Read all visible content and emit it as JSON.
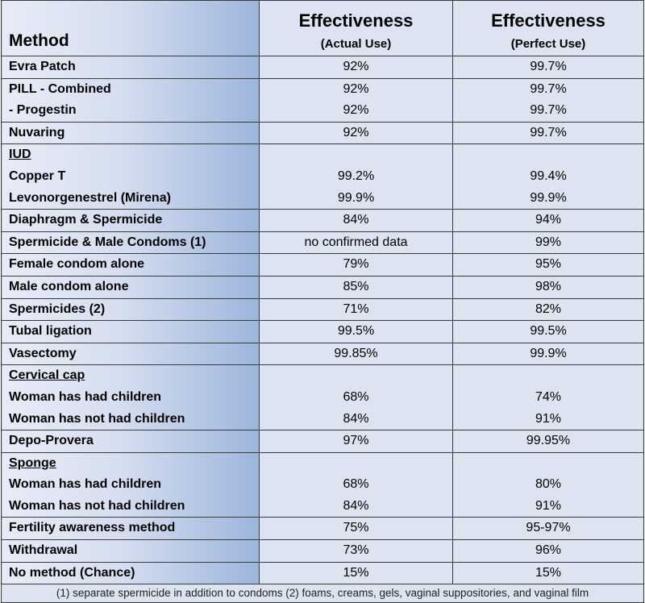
{
  "header": {
    "method": "Method",
    "col_actual_main": "Effectiveness",
    "col_actual_sub": "(Actual Use)",
    "col_perfect_main": "Effectiveness",
    "col_perfect_sub": "(Perfect Use)"
  },
  "rows": [
    {
      "lines": [
        {
          "label": "Evra Patch",
          "actual": "92%",
          "perfect": "99.7%"
        }
      ]
    },
    {
      "lines": [
        {
          "label": "PILL - Combined",
          "actual": "92%",
          "perfect": "99.7%"
        },
        {
          "label": "- Progestin",
          "actual": "92%",
          "perfect": "99.7%"
        }
      ]
    },
    {
      "lines": [
        {
          "label": "Nuvaring",
          "actual": "92%",
          "perfect": "99.7%"
        }
      ]
    },
    {
      "lines": [
        {
          "label": "IUD",
          "actual": "",
          "perfect": "",
          "underline": true
        },
        {
          "label": "Copper T",
          "actual": "99.2%",
          "perfect": "99.4%"
        },
        {
          "label": "Levonorgenestrel (Mirena)",
          "actual": "99.9%",
          "perfect": "99.9%"
        }
      ]
    },
    {
      "lines": [
        {
          "label": "Diaphragm & Spermicide",
          "actual": "84%",
          "perfect": "94%"
        }
      ]
    },
    {
      "lines": [
        {
          "label": "Spermicide & Male Condoms (1)",
          "actual": "no confirmed data",
          "perfect": "99%"
        }
      ]
    },
    {
      "lines": [
        {
          "label": "Female condom alone",
          "actual": "79%",
          "perfect": "95%"
        }
      ]
    },
    {
      "lines": [
        {
          "label": "Male condom alone",
          "actual": "85%",
          "perfect": "98%"
        }
      ]
    },
    {
      "lines": [
        {
          "label": "Spermicides (2)",
          "actual": "71%",
          "perfect": "82%"
        }
      ]
    },
    {
      "lines": [
        {
          "label": "Tubal ligation",
          "actual": "99.5%",
          "perfect": "99.5%"
        }
      ]
    },
    {
      "lines": [
        {
          "label": "Vasectomy",
          "actual": "99.85%",
          "perfect": "99.9%"
        }
      ]
    },
    {
      "lines": [
        {
          "label": "Cervical cap",
          "actual": "",
          "perfect": "",
          "underline": true
        },
        {
          "label": "Woman has had children",
          "actual": "68%",
          "perfect": "74%"
        },
        {
          "label": "Woman has not had children",
          "actual": "84%",
          "perfect": "91%"
        }
      ]
    },
    {
      "lines": [
        {
          "label": "Depo-Provera",
          "actual": "97%",
          "perfect": "99.95%"
        }
      ]
    },
    {
      "lines": [
        {
          "label": "Sponge",
          "actual": "",
          "perfect": "",
          "underline": true
        },
        {
          "label": "Woman has had children",
          "actual": "68%",
          "perfect": "80%"
        },
        {
          "label": "Woman has not had children",
          "actual": "84%",
          "perfect": "91%"
        }
      ]
    },
    {
      "lines": [
        {
          "label": "Fertility awareness method",
          "actual": "75%",
          "perfect": "95-97%"
        }
      ]
    },
    {
      "lines": [
        {
          "label": "Withdrawal",
          "actual": "73%",
          "perfect": "96%"
        }
      ]
    },
    {
      "lines": [
        {
          "label": "No method (Chance)",
          "actual": "15%",
          "perfect": "15%"
        }
      ]
    }
  ],
  "footnote": "(1) separate spermicide in addition to condoms  (2) foams, creams, gels, vaginal suppositories, and vaginal film"
}
